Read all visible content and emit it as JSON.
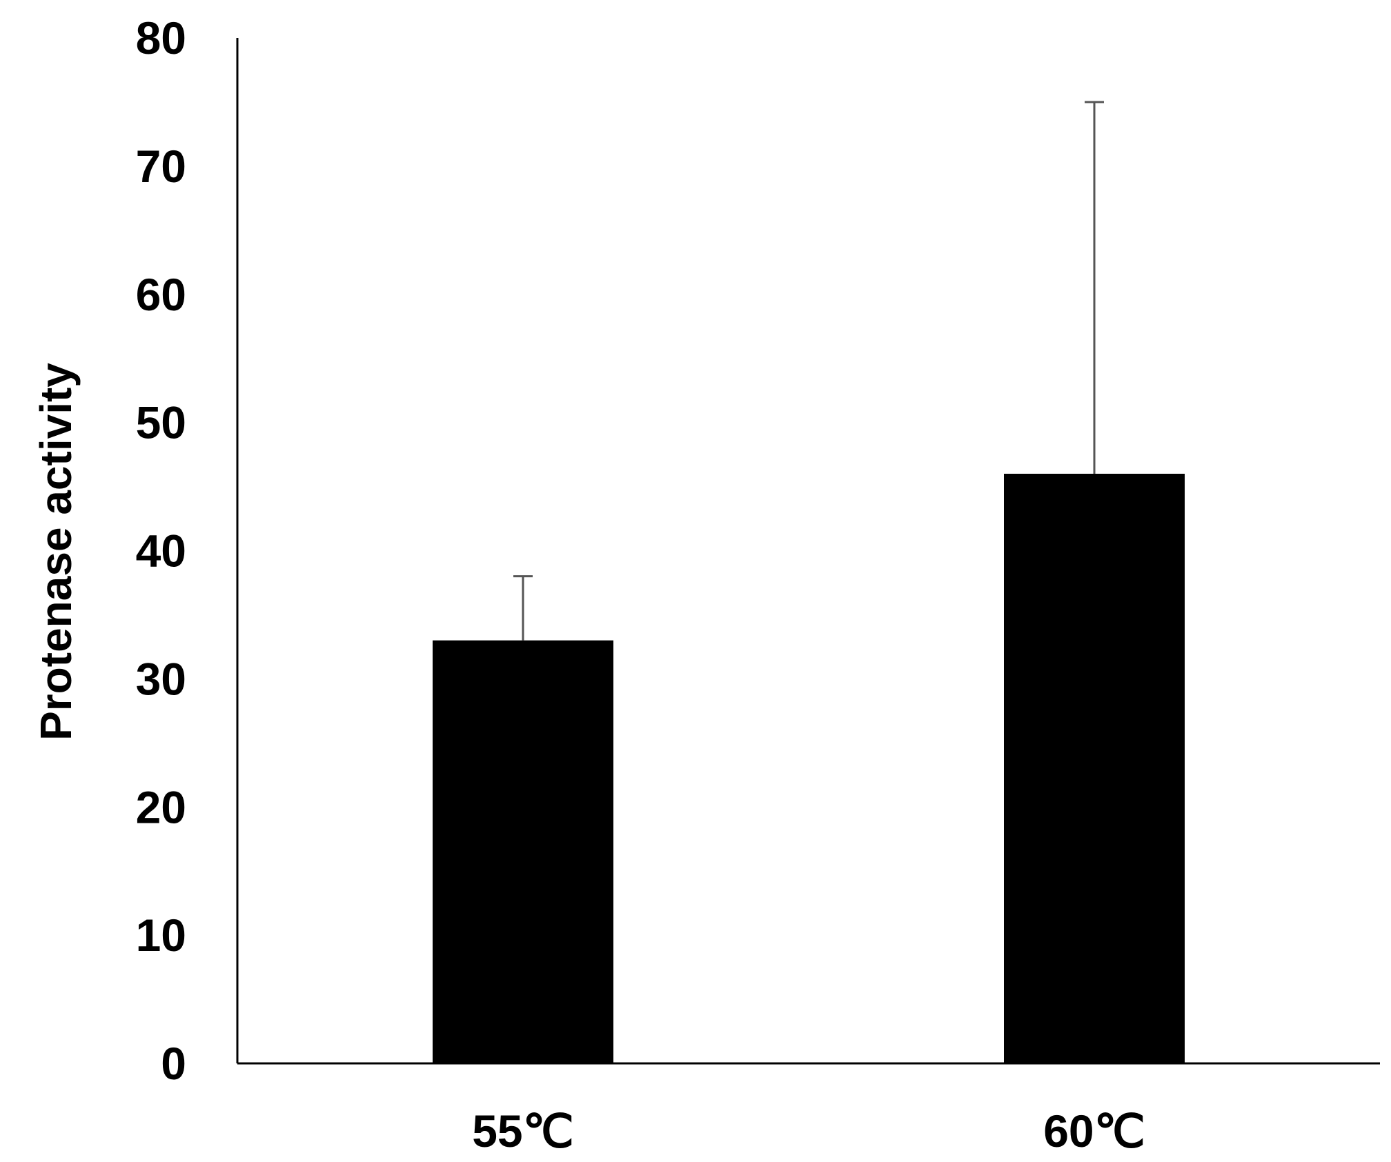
{
  "chart_data": {
    "type": "bar",
    "categories": [
      "55℃",
      "60℃"
    ],
    "series": [
      {
        "values": [
          33,
          46
        ],
        "error_upper": [
          38,
          75
        ]
      }
    ],
    "xlabel": "",
    "ylabel": "Protenase activity",
    "ylim": [
      0,
      80
    ],
    "yticks": [
      "0",
      "10",
      "20",
      "30",
      "40",
      "50",
      "60",
      "70",
      "80"
    ],
    "grid": false,
    "legend": "none",
    "bar_color": "#000000",
    "axis_color": "#000000",
    "error_bar_color": "#555555"
  }
}
